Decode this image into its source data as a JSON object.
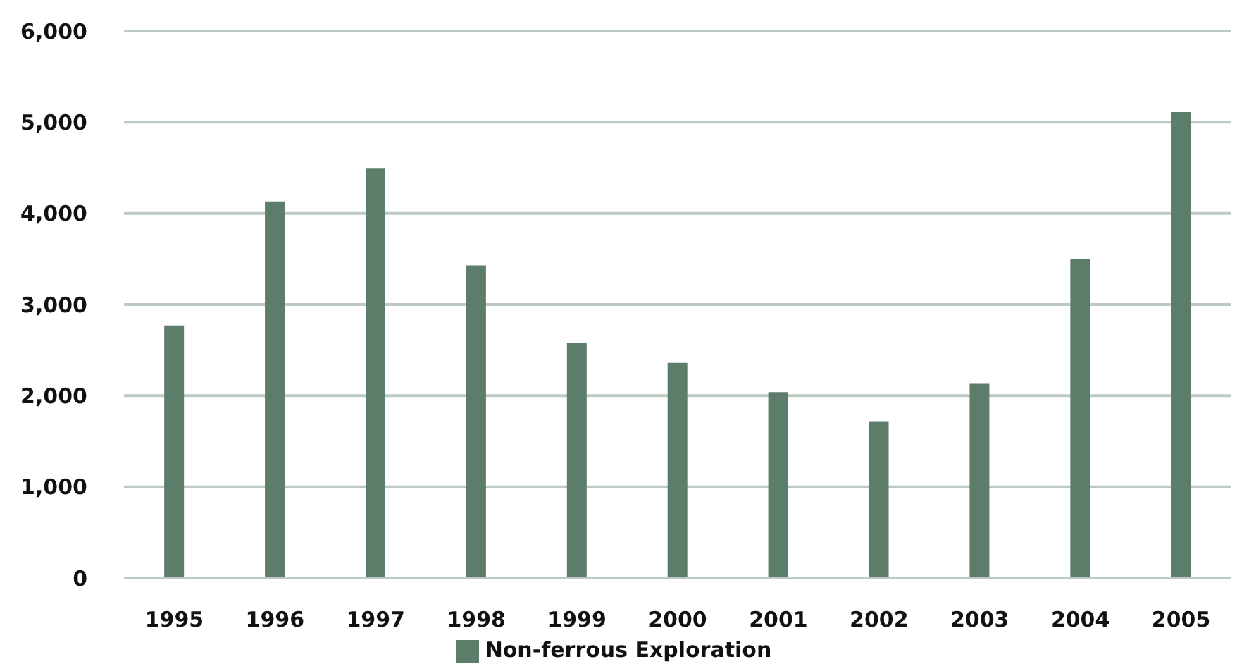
{
  "chart_data": {
    "type": "bar",
    "categories": [
      "1995",
      "1996",
      "1997",
      "1998",
      "1999",
      "2000",
      "2001",
      "2002",
      "2003",
      "2004",
      "2005"
    ],
    "series": [
      {
        "name": "Non-ferrous Exploration",
        "color": "#5c7d69",
        "values": [
          2770,
          4130,
          4490,
          3430,
          2580,
          2360,
          2040,
          1720,
          2130,
          3500,
          5110
        ]
      }
    ],
    "ylim": [
      0,
      6000
    ],
    "yticks": [
      {
        "value": 0,
        "label": "0"
      },
      {
        "value": 1000,
        "label": "1,000"
      },
      {
        "value": 2000,
        "label": "2,000"
      },
      {
        "value": 3000,
        "label": "3,000"
      },
      {
        "value": 4000,
        "label": "4,000"
      },
      {
        "value": 5000,
        "label": "5,000"
      },
      {
        "value": 6000,
        "label": "6,000"
      }
    ],
    "grid": "y",
    "legend": "bottom"
  }
}
